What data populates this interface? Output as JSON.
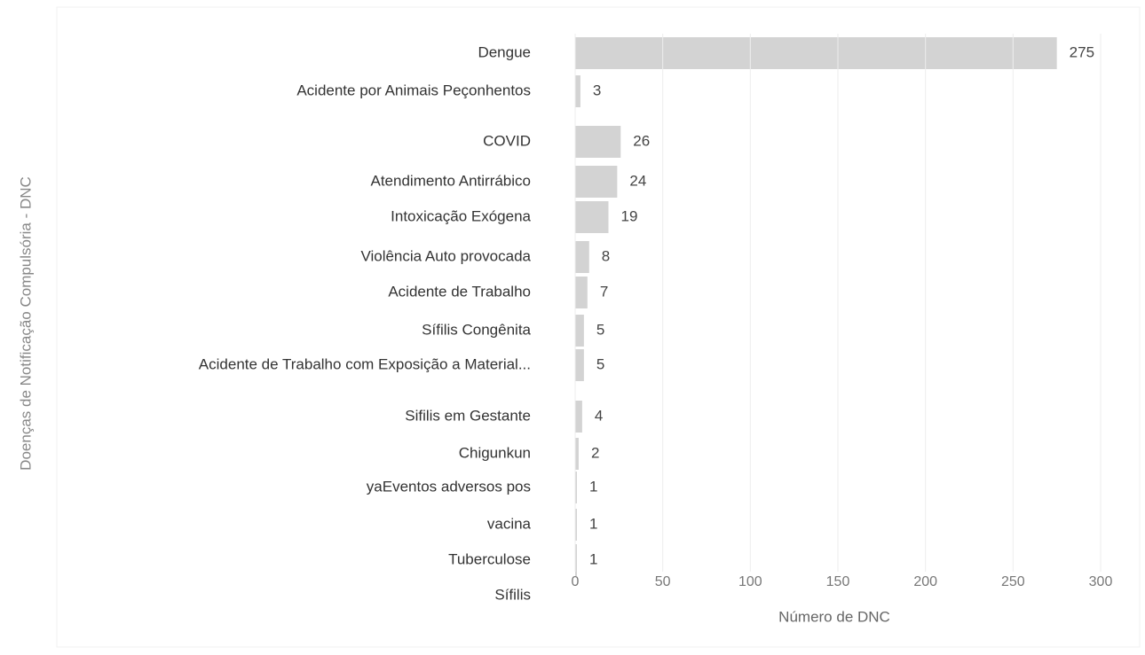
{
  "chart_data": {
    "type": "bar",
    "orientation": "horizontal",
    "y_label": "Doenças de Notificação Compulsória - DNC",
    "x_label": "Número de DNC",
    "categories": [
      "Dengue",
      "Acidente por Animais Peçonhentos",
      "COVID",
      "Atendimento Antirrábico",
      "Intoxicação Exógena",
      "Violência Auto provocada",
      "Acidente de Trabalho",
      "Sífilis Congênita",
      "Acidente de Trabalho com Exposição a Material...",
      "Sifilis em Gestante",
      "Chigunkun",
      "yaEventos adversos pos",
      "vacina",
      "Tuberculose",
      "Sífilis"
    ],
    "values": [
      275,
      3,
      26,
      24,
      19,
      8,
      7,
      5,
      5,
      4,
      2,
      1,
      1,
      1,
      null
    ],
    "color": "#d3d3d3",
    "xlim": [
      0,
      300
    ],
    "xticks": [
      0,
      50,
      100,
      150,
      200,
      250,
      300
    ],
    "grid": true
  }
}
